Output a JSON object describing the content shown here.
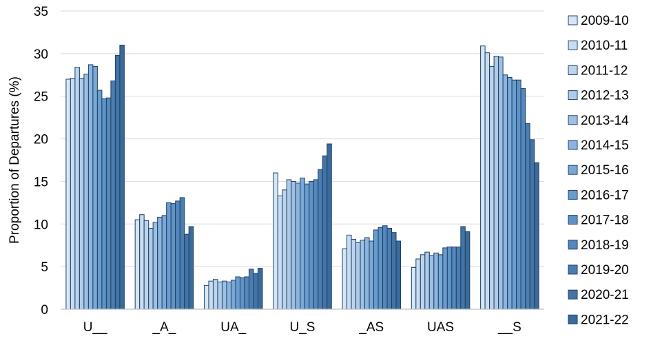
{
  "chart_data": {
    "type": "bar",
    "title": "",
    "xlabel": "",
    "ylabel": "Proportion of Departures (%)",
    "ylim": [
      0,
      35
    ],
    "yticks": [
      0,
      5,
      10,
      15,
      20,
      25,
      30,
      35
    ],
    "grid": true,
    "legend_position": "right",
    "categories": [
      "U__",
      "_A_",
      "UA_",
      "U_S",
      "_AS",
      "UAS",
      "__S"
    ],
    "series": [
      {
        "name": "2009-10",
        "color": "#d6e6f5",
        "values": [
          27.0,
          10.5,
          2.8,
          16.0,
          7.1,
          4.9,
          30.9
        ]
      },
      {
        "name": "2010-11",
        "color": "#c9ddf1",
        "values": [
          27.1,
          11.1,
          3.3,
          13.3,
          8.7,
          5.9,
          30.1
        ]
      },
      {
        "name": "2011-12",
        "color": "#bcd4ec",
        "values": [
          28.4,
          10.4,
          3.5,
          14.0,
          8.2,
          6.4,
          28.5
        ]
      },
      {
        "name": "2012-13",
        "color": "#aecbe8",
        "values": [
          27.1,
          9.5,
          3.2,
          15.2,
          7.8,
          6.7,
          29.7
        ]
      },
      {
        "name": "2013-14",
        "color": "#9ec0e3",
        "values": [
          27.6,
          10.2,
          3.3,
          15.0,
          8.1,
          6.3,
          29.6
        ]
      },
      {
        "name": "2014-15",
        "color": "#8cb5de",
        "values": [
          28.7,
          10.8,
          3.2,
          14.8,
          8.4,
          6.6,
          27.5
        ]
      },
      {
        "name": "2015-16",
        "color": "#7aa9d7",
        "values": [
          28.5,
          11.0,
          3.4,
          15.4,
          8.0,
          6.4,
          27.2
        ]
      },
      {
        "name": "2016-17",
        "color": "#6a9dcf",
        "values": [
          25.7,
          12.5,
          3.8,
          14.7,
          9.3,
          7.2,
          26.9
        ]
      },
      {
        "name": "2017-18",
        "color": "#5f93c6",
        "values": [
          24.7,
          12.4,
          3.7,
          15.0,
          9.6,
          7.3,
          26.9
        ]
      },
      {
        "name": "2018-19",
        "color": "#5488bb",
        "values": [
          24.8,
          12.7,
          3.8,
          15.2,
          9.8,
          7.3,
          25.9
        ]
      },
      {
        "name": "2019-20",
        "color": "#4b7eb0",
        "values": [
          26.8,
          13.1,
          4.7,
          16.4,
          9.5,
          7.3,
          21.8
        ]
      },
      {
        "name": "2020-21",
        "color": "#4374a5",
        "values": [
          29.8,
          8.8,
          4.2,
          18.0,
          9.0,
          9.7,
          19.9
        ]
      },
      {
        "name": "2021-22",
        "color": "#3a6b9a",
        "values": [
          31.0,
          9.7,
          4.8,
          19.4,
          8.0,
          9.1,
          17.2
        ]
      }
    ]
  }
}
